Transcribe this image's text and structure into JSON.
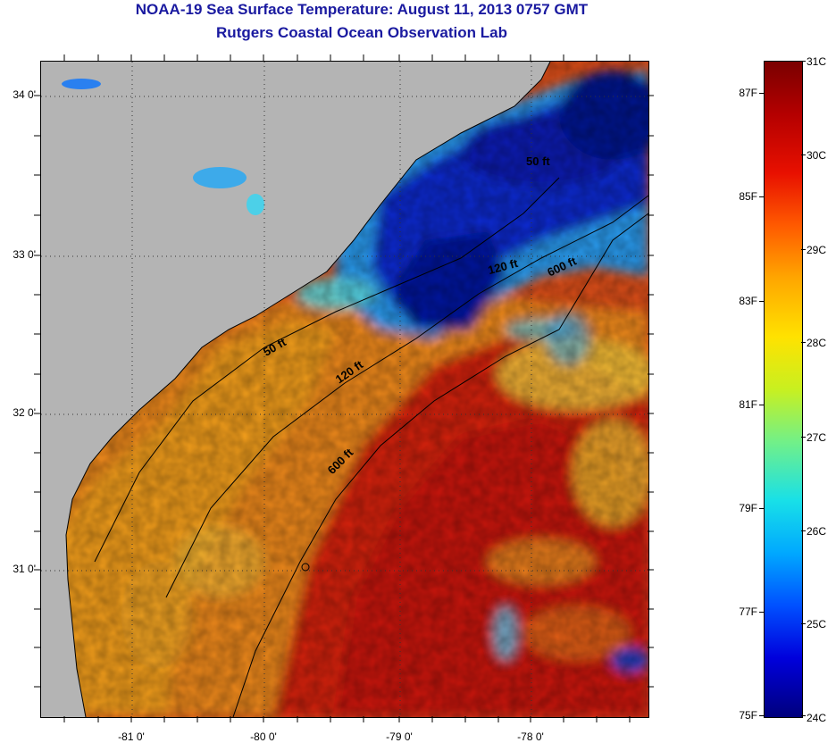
{
  "header": {
    "title": "NOAA-19 Sea Surface Temperature:  August 11, 2013 0757 GMT",
    "subtitle": "Rutgers Coastal Ocean Observation Lab"
  },
  "map": {
    "lat_labels": [
      "34 0'",
      "33 0'",
      "32 0'",
      "31 0'"
    ],
    "lon_labels": [
      "-81 0'",
      "-80 0'",
      "-79 0'",
      "-78 0'"
    ],
    "contour_labels": [
      "50 ft",
      "120 ft",
      "600 ft",
      "50 ft",
      "120 ft",
      "600 ft"
    ],
    "land_color": "#b4b4b4",
    "warm_color": "#d8441a",
    "cold_color": "#0a1eb4"
  },
  "colorbar": {
    "celsius": [
      "31C",
      "30C",
      "29C",
      "28C",
      "27C",
      "26C",
      "25C",
      "24C"
    ],
    "fahrenheit": [
      "87F",
      "85F",
      "83F",
      "81F",
      "79F",
      "77F",
      "75F"
    ]
  }
}
